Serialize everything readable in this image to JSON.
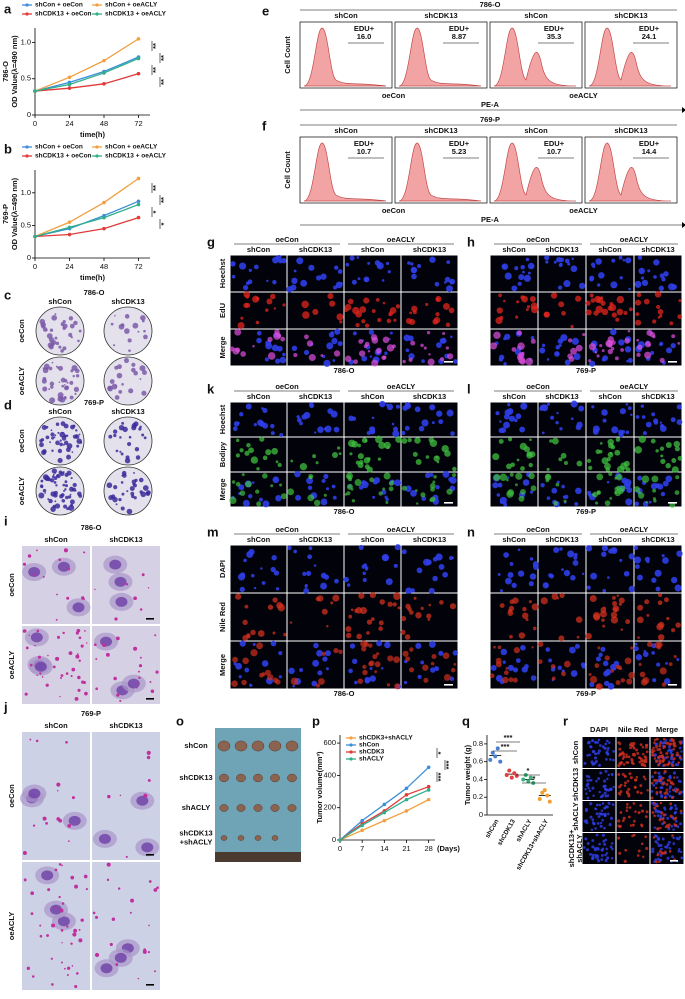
{
  "chart_data": [
    {
      "label": "a",
      "type": "line",
      "title": "786-O",
      "ylabel": "OD Value(λ=490 nm)",
      "xlabel": "time(h)",
      "x": [
        0,
        24,
        48,
        72
      ],
      "xlim": [
        0,
        80
      ],
      "xticks": [
        0,
        24,
        48,
        72
      ],
      "ylim": [
        0,
        1.2
      ],
      "yticks": [
        0,
        0.5,
        {
          "value": 1,
          "label": "1.0"
        }
      ],
      "series": [
        {
          "name": "shCon + oeCon",
          "color": "#3b8fd9",
          "values": [
            0.33,
            0.45,
            0.6,
            0.8
          ]
        },
        {
          "name": "shCon + oeACLY",
          "color": "#f0a040",
          "values": [
            0.33,
            0.52,
            0.75,
            1.05
          ]
        },
        {
          "name": "shCDK13 + oeCon",
          "color": "#e03a3a",
          "values": [
            0.33,
            0.37,
            0.43,
            0.57
          ]
        },
        {
          "name": "shCDK13 + oeACLY",
          "color": "#2fae8a",
          "values": [
            0.33,
            0.42,
            0.58,
            0.78
          ]
        }
      ],
      "significance": [
        "**",
        "**",
        "**",
        "**"
      ]
    },
    {
      "label": "b",
      "type": "line",
      "title": "769-P",
      "ylabel": "OD Value(λ=490 nm)",
      "xlabel": "time(h)",
      "x": [
        0,
        24,
        48,
        72
      ],
      "xlim": [
        0,
        80
      ],
      "xticks": [
        0,
        24,
        48,
        72
      ],
      "ylim": [
        0,
        1.35
      ],
      "yticks": [
        0,
        0.5,
        {
          "value": 1,
          "label": "1.0"
        }
      ],
      "series": [
        {
          "name": "shCon + oeCon",
          "color": "#3b8fd9",
          "values": [
            0.33,
            0.45,
            0.65,
            0.87
          ]
        },
        {
          "name": "shCon + oeACLY",
          "color": "#f0a040",
          "values": [
            0.33,
            0.55,
            0.85,
            1.22
          ]
        },
        {
          "name": "shCDK13 + oeCon",
          "color": "#e03a3a",
          "values": [
            0.33,
            0.36,
            0.45,
            0.62
          ]
        },
        {
          "name": "shCDK13 + oeACLY",
          "color": "#2fae8a",
          "values": [
            0.33,
            0.47,
            0.62,
            0.82
          ]
        }
      ],
      "significance": [
        "**",
        "**",
        "*",
        "*"
      ]
    },
    {
      "label": "p",
      "type": "line",
      "ylabel": "Tumor volume(mm³)",
      "xlabel": "(Days)",
      "x": [
        0,
        7,
        14,
        21,
        28
      ],
      "xlim": [
        0,
        30
      ],
      "xticks": [
        0,
        7,
        14,
        21,
        28
      ],
      "ylim": [
        0,
        650
      ],
      "yticks": [
        0,
        200,
        400,
        600
      ],
      "series": [
        {
          "name": "shCDK3+shACLY",
          "color": "#f0a040",
          "values": [
            0,
            60,
            120,
            180,
            250
          ]
        },
        {
          "name": "shCon",
          "color": "#3b8fd9",
          "values": [
            0,
            120,
            220,
            320,
            450
          ]
        },
        {
          "name": "shCDK3",
          "color": "#e03a3a",
          "values": [
            0,
            100,
            180,
            280,
            330
          ]
        },
        {
          "name": "shACLY",
          "color": "#2fae8a",
          "values": [
            0,
            90,
            170,
            250,
            310
          ]
        }
      ],
      "significance": [
        "*",
        "***",
        "***"
      ]
    },
    {
      "label": "q",
      "type": "dot",
      "ylabel": "Tumor weight (g)",
      "categories": [
        "shCon",
        "shCDK13",
        "shACLY",
        "shCDK13+shACLY"
      ],
      "colors": [
        "#4a7fd0",
        "#e04040",
        "#3ab07a",
        "#f0a030"
      ],
      "points": [
        [
          0.62,
          0.7,
          0.66,
          0.75,
          0.6
        ],
        [
          0.45,
          0.5,
          0.42,
          0.47,
          0.44
        ],
        [
          0.4,
          0.45,
          0.38,
          0.42,
          0.36
        ],
        [
          0.18,
          0.25,
          0.28,
          0.22,
          0.15
        ]
      ],
      "means": [
        0.67,
        0.46,
        0.4,
        0.22
      ],
      "ylim": [
        0,
        0.9
      ],
      "yticks": [
        0,
        0.2,
        0.4,
        0.6,
        0.8
      ],
      "significance": [
        "***",
        "***",
        "*",
        "*"
      ]
    }
  ],
  "flow": [
    {
      "label": "e",
      "title": "786-O",
      "groups": [
        "shCon",
        "shCDK13",
        "shCon",
        "shCDK13"
      ],
      "gate": "EDU+",
      "percents": [
        "16.0",
        "8.87",
        "35.3",
        "24.1"
      ],
      "conditions": [
        "oeCon",
        "oeACLY"
      ],
      "ylabel": "Cell Count",
      "xlabel": "PE-A"
    },
    {
      "label": "f",
      "title": "769-P",
      "groups": [
        "shCon",
        "shCDK13",
        "shCon",
        "shCDK13"
      ],
      "gate": "EDU+",
      "percents": [
        "10.7",
        "5.23",
        "10.7",
        "14.4"
      ],
      "conditions": [
        "oeCon",
        "oeACLY"
      ],
      "ylabel": "Cell Count",
      "xlabel": "PE-A"
    }
  ],
  "plates": [
    {
      "label": "c",
      "title": "786-O",
      "columns": [
        "shCon",
        "shCDK13"
      ],
      "rows": [
        "oeCon",
        "oeACLY"
      ]
    },
    {
      "label": "d",
      "title": "769-P",
      "columns": [
        "shCon",
        "shCDK13"
      ],
      "rows": [
        "oeCon",
        "oeACLY"
      ]
    }
  ],
  "staining": [
    {
      "label": "i",
      "title": "786-O",
      "columns": [
        "shCon",
        "shCDK13"
      ],
      "rows": [
        "oeCon",
        "oeACLY"
      ]
    },
    {
      "label": "j",
      "title": "769-P",
      "columns": [
        "shCon",
        "shCDK13"
      ],
      "rows": [
        "oeCon",
        "oeACLY"
      ]
    }
  ],
  "microscopy": [
    {
      "label": "g",
      "conditions": [
        "oeCon",
        "oeACLY"
      ],
      "columns": [
        "shCon",
        "shCDK13",
        "shCon",
        "shCDK13"
      ],
      "rows": [
        "Hoechst",
        "EdU",
        "Merge"
      ],
      "row_colors": [
        "#2f3ee8",
        "#e3261e",
        "#e050e0"
      ],
      "cell_line": "786-O"
    },
    {
      "label": "h",
      "conditions": [
        "oeCon",
        "oeACLY"
      ],
      "columns": [
        "shCon",
        "shCDK13",
        "shCon",
        "shCDK13"
      ],
      "row_colors": [
        "#2f3ee8",
        "#e3261e",
        "#e050e0"
      ],
      "cell_line": "769-P"
    },
    {
      "label": "k",
      "conditions": [
        "oeCon",
        "oeACLY"
      ],
      "columns": [
        "shCon",
        "shCDK13",
        "shCon",
        "shCDK13"
      ],
      "rows": [
        "Hoechst",
        "Bodipy",
        "Merge"
      ],
      "row_colors": [
        "#2f3ee8",
        "#3fbf3f",
        "#3fbf3f"
      ],
      "cell_line": "786-O"
    },
    {
      "label": "l",
      "conditions": [
        "oeCon",
        "oeACLY"
      ],
      "columns": [
        "shCon",
        "shCDK13",
        "shCon",
        "shCDK13"
      ],
      "row_colors": [
        "#2f3ee8",
        "#3fbf3f",
        "#3fbf3f"
      ],
      "cell_line": "769-P"
    },
    {
      "label": "m",
      "conditions": [
        "oeCon",
        "oeACLY"
      ],
      "columns": [
        "shCon",
        "shCDK13",
        "shCon",
        "shCDK13"
      ],
      "rows": [
        "DAPI",
        "Nile Red",
        "Merge"
      ],
      "row_colors": [
        "#2f3ee8",
        "#d0301e",
        "#d0301e"
      ],
      "cell_line": "786-O"
    },
    {
      "label": "n",
      "conditions": [
        "oeCon",
        "oeACLY"
      ],
      "columns": [
        "shCon",
        "shCDK13",
        "shCon",
        "shCDK13"
      ],
      "row_colors": [
        "#2f3ee8",
        "#d0301e",
        "#d0301e"
      ],
      "cell_line": "769-P"
    }
  ],
  "tumors": {
    "label": "o",
    "rows": [
      [
        "shCon"
      ],
      [
        "shCDK13"
      ],
      [
        "shACLY"
      ],
      [
        "shCDK13",
        "+shACLY"
      ]
    ]
  },
  "sections": {
    "label": "r",
    "columns": [
      "DAPI",
      "Nile Red",
      "Merge"
    ],
    "row_colors": [
      "#2f3ee8",
      "#d0301e",
      "#d0301e"
    ],
    "rows": [
      [
        "shCon"
      ],
      [
        "shCDK13"
      ],
      [
        "shACLY"
      ],
      [
        "shCDK13+",
        "shACLY"
      ]
    ]
  }
}
